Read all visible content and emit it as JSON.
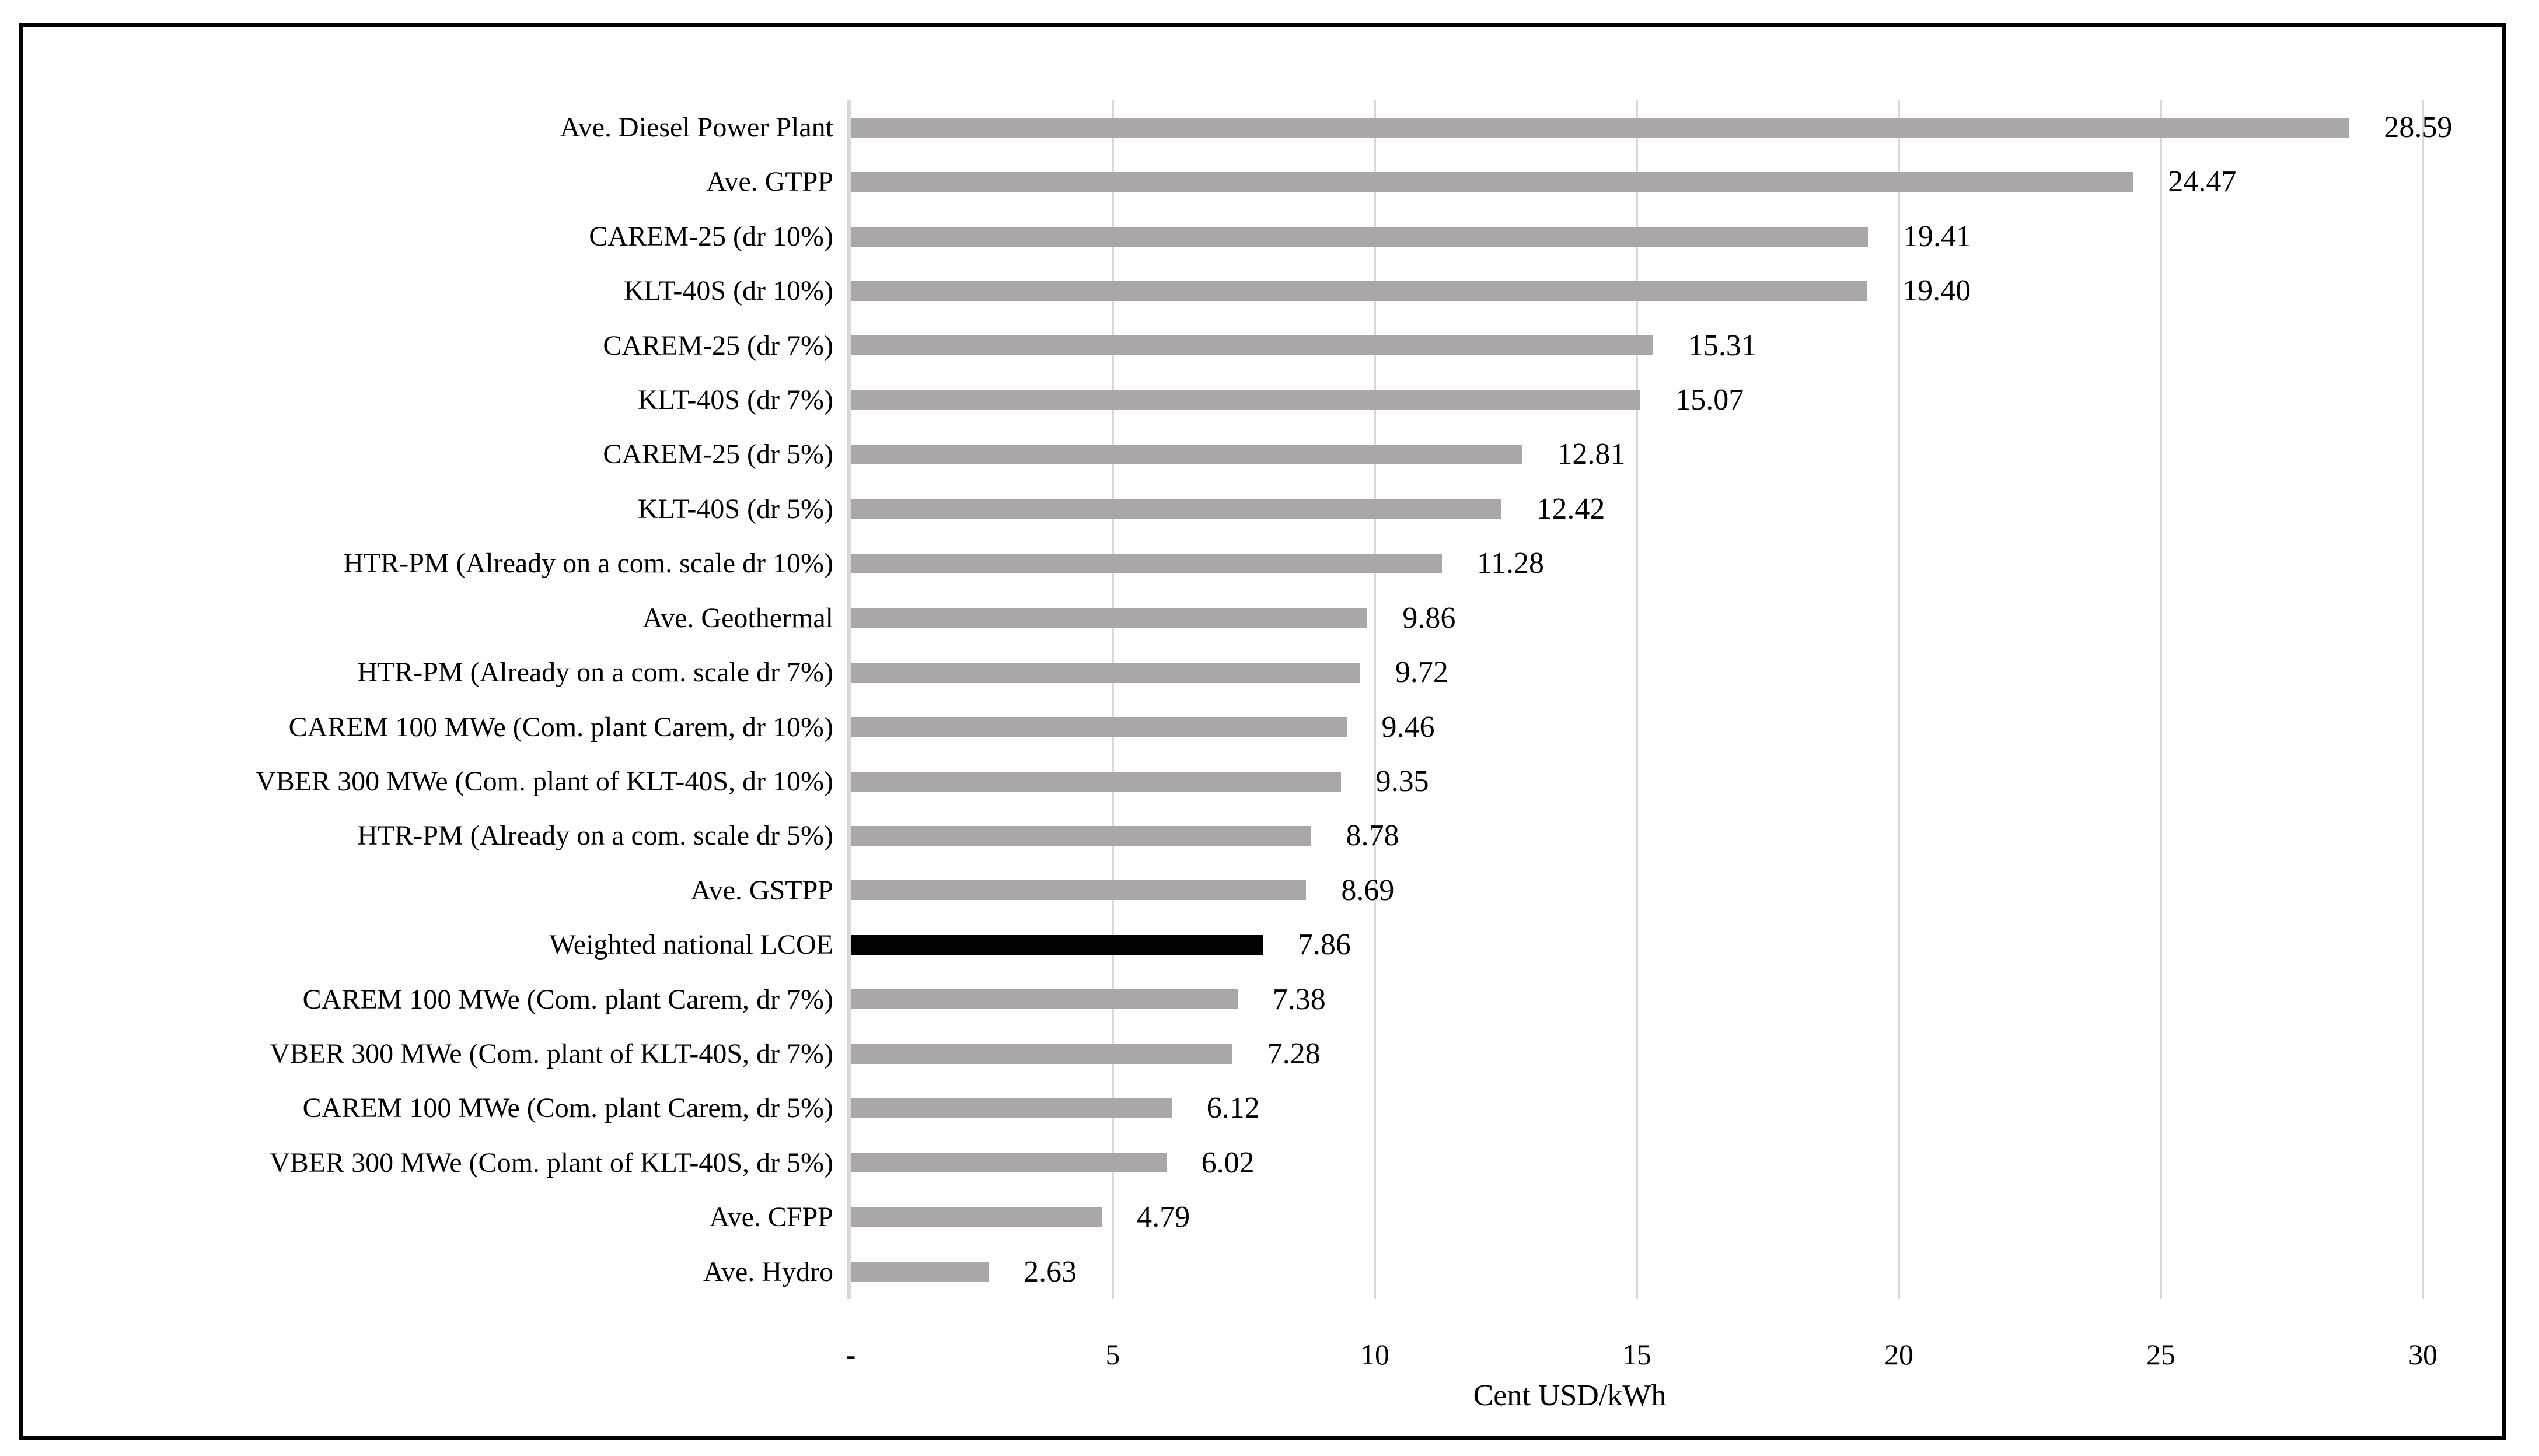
{
  "figure": {
    "background": "#FFFFFF",
    "border_color": "#000000"
  },
  "chart_data": {
    "type": "bar",
    "orientation": "horizontal",
    "title": "",
    "xlabel": "Cent USD/kWh",
    "ylabel": "",
    "xlim": [
      0,
      31.4
    ],
    "grid": "vertical",
    "legend": "none",
    "gridlines_at": [
      5,
      10,
      15,
      20,
      25,
      30
    ],
    "x_ticks": [
      {
        "value": 0,
        "label": "-"
      },
      {
        "value": 5,
        "label": "5"
      },
      {
        "value": 10,
        "label": "10"
      },
      {
        "value": 15,
        "label": "15"
      },
      {
        "value": 20,
        "label": "20"
      },
      {
        "value": 25,
        "label": "25"
      },
      {
        "value": 30,
        "label": "30"
      }
    ],
    "bars": [
      {
        "category": "Ave. Diesel Power Plant",
        "value": 28.59,
        "label": "28.59",
        "highlight": false
      },
      {
        "category": "Ave. GTPP",
        "value": 24.47,
        "label": "24.47",
        "highlight": false
      },
      {
        "category": "CAREM-25 (dr 10%)",
        "value": 19.41,
        "label": "19.41",
        "highlight": false
      },
      {
        "category": "KLT-40S (dr 10%)",
        "value": 19.4,
        "label": "19.40",
        "highlight": false
      },
      {
        "category": "CAREM-25 (dr 7%)",
        "value": 15.31,
        "label": "15.31",
        "highlight": false
      },
      {
        "category": "KLT-40S (dr 7%)",
        "value": 15.07,
        "label": "15.07",
        "highlight": false
      },
      {
        "category": "CAREM-25 (dr 5%)",
        "value": 12.81,
        "label": "12.81",
        "highlight": false
      },
      {
        "category": "KLT-40S (dr 5%)",
        "value": 12.42,
        "label": "12.42",
        "highlight": false
      },
      {
        "category": "HTR-PM (Already on a com. scale dr 10%)",
        "value": 11.28,
        "label": "11.28",
        "highlight": false
      },
      {
        "category": "Ave. Geothermal",
        "value": 9.86,
        "label": "9.86",
        "highlight": false
      },
      {
        "category": "HTR-PM (Already on a com. scale dr 7%)",
        "value": 9.72,
        "label": "9.72",
        "highlight": false
      },
      {
        "category": "CAREM 100 MWe (Com. plant Carem, dr 10%)",
        "value": 9.46,
        "label": "9.46",
        "highlight": false
      },
      {
        "category": "VBER 300 MWe (Com. plant of KLT-40S, dr 10%)",
        "value": 9.35,
        "label": "9.35",
        "highlight": false
      },
      {
        "category": "HTR-PM (Already on a com. scale dr 5%)",
        "value": 8.78,
        "label": "8.78",
        "highlight": false
      },
      {
        "category": "Ave. GSTPP",
        "value": 8.69,
        "label": "8.69",
        "highlight": false
      },
      {
        "category": "Weighted national LCOE",
        "value": 7.86,
        "label": "7.86",
        "highlight": true
      },
      {
        "category": "CAREM 100 MWe (Com. plant Carem, dr 7%)",
        "value": 7.38,
        "label": "7.38",
        "highlight": false
      },
      {
        "category": "VBER 300 MWe (Com. plant of KLT-40S, dr 7%)",
        "value": 7.28,
        "label": "7.28",
        "highlight": false
      },
      {
        "category": "CAREM 100 MWe (Com. plant Carem, dr 5%)",
        "value": 6.12,
        "label": "6.12",
        "highlight": false
      },
      {
        "category": "VBER 300 MWe (Com. plant of KLT-40S, dr 5%)",
        "value": 6.02,
        "label": "6.02",
        "highlight": false
      },
      {
        "category": "Ave. CFPP",
        "value": 4.79,
        "label": "4.79",
        "highlight": false
      },
      {
        "category": "Ave. Hydro",
        "value": 2.63,
        "label": "2.63",
        "highlight": false
      }
    ],
    "colors": {
      "bar": "#ABA7A8",
      "highlight_bar": "#000000",
      "gridline": "#D9D9D9",
      "axis_line": "#D9D9D9",
      "text": "#000000"
    }
  }
}
